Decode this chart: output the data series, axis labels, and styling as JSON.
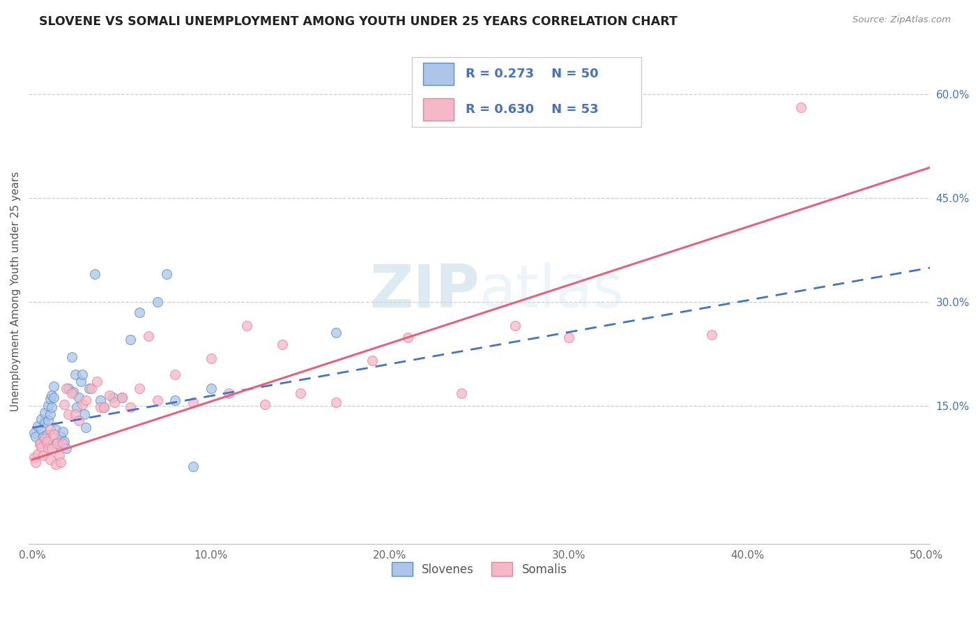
{
  "title": "SLOVENE VS SOMALI UNEMPLOYMENT AMONG YOUTH UNDER 25 YEARS CORRELATION CHART",
  "source": "Source: ZipAtlas.com",
  "ylabel": "Unemployment Among Youth under 25 years",
  "xlim": [
    -0.002,
    0.502
  ],
  "ylim": [
    -0.05,
    0.68
  ],
  "x_ticks": [
    0.0,
    0.1,
    0.2,
    0.3,
    0.4,
    0.5
  ],
  "x_tick_labels": [
    "0.0%",
    "10.0%",
    "20.0%",
    "30.0%",
    "40.0%",
    "50.0%"
  ],
  "y_ticks": [
    0.15,
    0.3,
    0.45,
    0.6
  ],
  "y_tick_labels": [
    "15.0%",
    "30.0%",
    "45.0%",
    "60.0%"
  ],
  "slovene_color": "#adc6e8",
  "somali_color": "#f5b8c8",
  "slovene_edge_color": "#5b8ec4",
  "somali_edge_color": "#e8809a",
  "slovene_line_color": "#4472c4",
  "somali_line_color": "#e8607a",
  "watermark_color": "#cce4f0",
  "slovene_x": [
    0.001,
    0.002,
    0.003,
    0.004,
    0.005,
    0.005,
    0.006,
    0.007,
    0.007,
    0.008,
    0.008,
    0.009,
    0.009,
    0.01,
    0.01,
    0.011,
    0.011,
    0.012,
    0.012,
    0.013,
    0.014,
    0.015,
    0.016,
    0.017,
    0.018,
    0.019,
    0.02,
    0.022,
    0.023,
    0.024,
    0.025,
    0.026,
    0.027,
    0.028,
    0.029,
    0.03,
    0.032,
    0.035,
    0.038,
    0.04,
    0.045,
    0.05,
    0.055,
    0.06,
    0.07,
    0.075,
    0.08,
    0.09,
    0.1,
    0.17
  ],
  "slovene_y": [
    0.11,
    0.105,
    0.12,
    0.095,
    0.115,
    0.13,
    0.105,
    0.125,
    0.14,
    0.108,
    0.095,
    0.128,
    0.15,
    0.16,
    0.138,
    0.165,
    0.148,
    0.162,
    0.178,
    0.115,
    0.098,
    0.092,
    0.105,
    0.112,
    0.098,
    0.088,
    0.175,
    0.22,
    0.17,
    0.195,
    0.148,
    0.162,
    0.185,
    0.195,
    0.138,
    0.118,
    0.175,
    0.34,
    0.158,
    0.148,
    0.162,
    0.162,
    0.245,
    0.285,
    0.3,
    0.34,
    0.158,
    0.062,
    0.175,
    0.255
  ],
  "somali_x": [
    0.001,
    0.002,
    0.003,
    0.004,
    0.005,
    0.006,
    0.007,
    0.008,
    0.009,
    0.01,
    0.01,
    0.011,
    0.012,
    0.013,
    0.014,
    0.015,
    0.016,
    0.017,
    0.018,
    0.019,
    0.02,
    0.022,
    0.024,
    0.026,
    0.028,
    0.03,
    0.033,
    0.036,
    0.038,
    0.04,
    0.043,
    0.046,
    0.05,
    0.055,
    0.06,
    0.065,
    0.07,
    0.08,
    0.09,
    0.1,
    0.11,
    0.12,
    0.13,
    0.14,
    0.15,
    0.17,
    0.19,
    0.21,
    0.24,
    0.27,
    0.3,
    0.38,
    0.43
  ],
  "somali_y": [
    0.075,
    0.068,
    0.08,
    0.095,
    0.09,
    0.078,
    0.102,
    0.098,
    0.088,
    0.115,
    0.072,
    0.088,
    0.108,
    0.065,
    0.095,
    0.078,
    0.068,
    0.095,
    0.152,
    0.175,
    0.138,
    0.168,
    0.138,
    0.128,
    0.152,
    0.158,
    0.175,
    0.185,
    0.148,
    0.148,
    0.165,
    0.155,
    0.162,
    0.148,
    0.175,
    0.25,
    0.158,
    0.195,
    0.155,
    0.218,
    0.168,
    0.265,
    0.152,
    0.238,
    0.168,
    0.155,
    0.215,
    0.248,
    0.168,
    0.265,
    0.248,
    0.252,
    0.58
  ],
  "slovene_line_intercept": 0.118,
  "slovene_line_slope": 0.46,
  "somali_line_intercept": 0.072,
  "somali_line_slope": 0.84
}
